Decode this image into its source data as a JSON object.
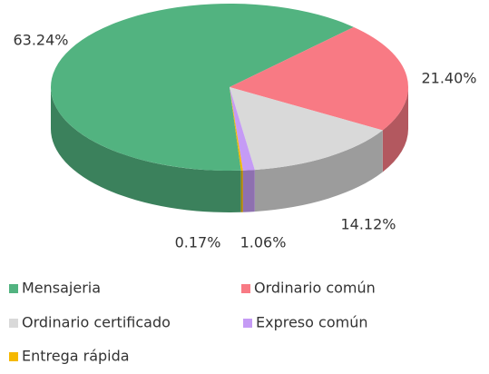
{
  "chart_data": {
    "type": "pie",
    "categories": [
      "Mensajeria",
      "Ordinario común",
      "Ordinario certificado",
      "Expreso común",
      "Entrega rápida"
    ],
    "values": [
      63.24,
      21.4,
      14.12,
      1.06,
      0.17
    ],
    "value_labels": [
      "63.24%",
      "21.40%",
      "14.12%",
      "1.06%",
      "0.17%"
    ],
    "colors": [
      "#52b380",
      "#f87a84",
      "#d9d9d9",
      "#c59bf5",
      "#f5b800"
    ],
    "legend": "bottom"
  }
}
